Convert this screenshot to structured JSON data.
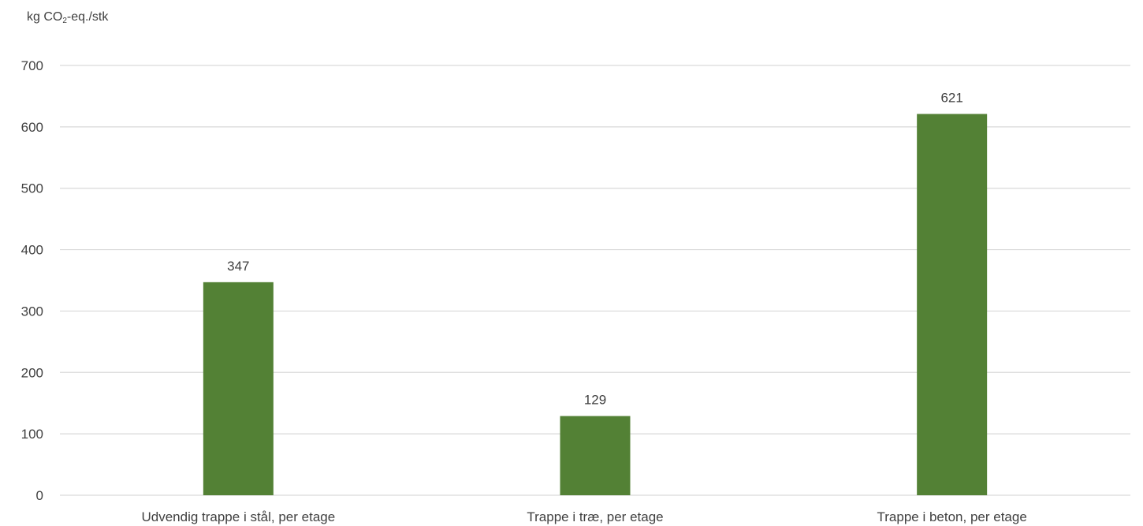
{
  "chart_data": {
    "type": "bar",
    "ylabel_parts": {
      "pre": "kg CO",
      "sub": "2",
      "post": "-eq./stk"
    },
    "categories": [
      "Udvendig trappe i stål, per etage",
      "Trappe i træ, per etage",
      "Trappe i beton, per etage"
    ],
    "values": [
      347,
      129,
      621
    ],
    "data_labels": [
      "347",
      "129",
      "621"
    ],
    "ylim": [
      0,
      700
    ],
    "yticks": [
      0,
      100,
      200,
      300,
      400,
      500,
      600,
      700
    ],
    "grid": true,
    "legend": "none",
    "bar_color": "#538135",
    "grid_color": "#d9d9d9"
  }
}
